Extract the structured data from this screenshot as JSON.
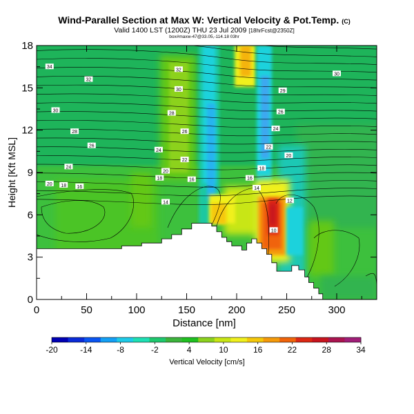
{
  "chart_data": {
    "type": "heatmap",
    "title": "Wind-Parallel Section at Max W: Vertical Velocity & Pot.Temp.",
    "title_mark": "(C)",
    "subtitle": "Valid 1400 LST (1200Z) THU 23 Jul 2009",
    "subtitle_note": "[18hrFcst@2350Z]",
    "subtitle2": "box#maxw-47@33.05,-114.18 03hr",
    "xlabel": "Distance [nm]",
    "ylabel": "Height [Kft MSL]",
    "xlim": [
      0,
      340
    ],
    "ylim": [
      0,
      18
    ],
    "xticks": [
      0,
      50,
      100,
      150,
      200,
      250,
      300
    ],
    "yticks": [
      0,
      3,
      6,
      9,
      12,
      15,
      18
    ],
    "colorbar": {
      "label": "Vertical Velocity [cm/s]",
      "ticks": [
        -20,
        -14,
        -8,
        -2,
        4,
        10,
        16,
        22,
        28,
        34
      ],
      "range": [
        -20,
        34
      ],
      "colors": [
        "#0000b4",
        "#0a2bd8",
        "#0a55f2",
        "#14a0f5",
        "#1ecbe8",
        "#1ee0b4",
        "#1ec86e",
        "#3cb43c",
        "#20c020",
        "#8cd21e",
        "#c8e614",
        "#f0f01e",
        "#f5c80a",
        "#f59a0a",
        "#f0640a",
        "#dc2814",
        "#c8141e",
        "#aa1450",
        "#a01e78"
      ]
    },
    "terrain": [
      {
        "x": 0,
        "h": 3.6
      },
      {
        "x": 85,
        "h": 3.6
      },
      {
        "x": 85,
        "h": 3.8
      },
      {
        "x": 105,
        "h": 3.8
      },
      {
        "x": 105,
        "h": 4.0
      },
      {
        "x": 125,
        "h": 4.0
      },
      {
        "x": 125,
        "h": 4.3
      },
      {
        "x": 135,
        "h": 4.3
      },
      {
        "x": 135,
        "h": 4.6
      },
      {
        "x": 145,
        "h": 4.6
      },
      {
        "x": 145,
        "h": 5.0
      },
      {
        "x": 155,
        "h": 5.0
      },
      {
        "x": 155,
        "h": 5.4
      },
      {
        "x": 175,
        "h": 5.4
      },
      {
        "x": 175,
        "h": 5.2
      },
      {
        "x": 180,
        "h": 5.2
      },
      {
        "x": 180,
        "h": 4.8
      },
      {
        "x": 185,
        "h": 4.8
      },
      {
        "x": 185,
        "h": 4.4
      },
      {
        "x": 190,
        "h": 4.4
      },
      {
        "x": 190,
        "h": 4.1
      },
      {
        "x": 195,
        "h": 4.1
      },
      {
        "x": 195,
        "h": 3.8
      },
      {
        "x": 205,
        "h": 3.8
      },
      {
        "x": 205,
        "h": 3.5
      },
      {
        "x": 210,
        "h": 3.5
      },
      {
        "x": 210,
        "h": 4.0
      },
      {
        "x": 215,
        "h": 4.0
      },
      {
        "x": 215,
        "h": 4.3
      },
      {
        "x": 220,
        "h": 4.3
      },
      {
        "x": 220,
        "h": 4.0
      },
      {
        "x": 225,
        "h": 4.0
      },
      {
        "x": 225,
        "h": 3.6
      },
      {
        "x": 230,
        "h": 3.6
      },
      {
        "x": 230,
        "h": 3.2
      },
      {
        "x": 235,
        "h": 3.2
      },
      {
        "x": 235,
        "h": 2.6
      },
      {
        "x": 240,
        "h": 2.6
      },
      {
        "x": 240,
        "h": 2.0
      },
      {
        "x": 255,
        "h": 2.0
      },
      {
        "x": 255,
        "h": 2.4
      },
      {
        "x": 262,
        "h": 2.4
      },
      {
        "x": 262,
        "h": 2.1
      },
      {
        "x": 268,
        "h": 2.1
      },
      {
        "x": 268,
        "h": 1.6
      },
      {
        "x": 272,
        "h": 1.6
      },
      {
        "x": 272,
        "h": 1.2
      },
      {
        "x": 277,
        "h": 1.2
      },
      {
        "x": 277,
        "h": 0.8
      },
      {
        "x": 282,
        "h": 0.8
      },
      {
        "x": 282,
        "h": 0.4
      },
      {
        "x": 286,
        "h": 0.4
      },
      {
        "x": 286,
        "h": 0
      },
      {
        "x": 340,
        "h": 0
      }
    ],
    "theta_labels": [
      {
        "x": 13,
        "y": 16.5,
        "t": "34"
      },
      {
        "x": 52,
        "y": 15.6,
        "t": "32"
      },
      {
        "x": 19,
        "y": 13.4,
        "t": "30"
      },
      {
        "x": 38,
        "y": 11.9,
        "t": "28"
      },
      {
        "x": 55,
        "y": 10.9,
        "t": "26"
      },
      {
        "x": 32,
        "y": 9.4,
        "t": "24"
      },
      {
        "x": 13,
        "y": 8.2,
        "t": "20"
      },
      {
        "x": 27,
        "y": 8.1,
        "t": "18"
      },
      {
        "x": 43,
        "y": 8.0,
        "t": "16"
      },
      {
        "x": 142,
        "y": 16.3,
        "t": "32"
      },
      {
        "x": 142,
        "y": 14.9,
        "t": "30"
      },
      {
        "x": 135,
        "y": 13.2,
        "t": "28"
      },
      {
        "x": 148,
        "y": 11.9,
        "t": "26"
      },
      {
        "x": 122,
        "y": 10.6,
        "t": "24"
      },
      {
        "x": 148,
        "y": 9.9,
        "t": "22"
      },
      {
        "x": 129,
        "y": 9.1,
        "t": "20"
      },
      {
        "x": 123,
        "y": 8.6,
        "t": "18"
      },
      {
        "x": 155,
        "y": 8.5,
        "t": "16"
      },
      {
        "x": 129,
        "y": 6.9,
        "t": "14"
      },
      {
        "x": 300,
        "y": 16.0,
        "t": "30"
      },
      {
        "x": 246,
        "y": 14.8,
        "t": "29"
      },
      {
        "x": 244,
        "y": 13.3,
        "t": "26"
      },
      {
        "x": 239,
        "y": 12.1,
        "t": "24"
      },
      {
        "x": 232,
        "y": 10.8,
        "t": "22"
      },
      {
        "x": 252,
        "y": 10.2,
        "t": "20"
      },
      {
        "x": 225,
        "y": 9.3,
        "t": "18"
      },
      {
        "x": 213,
        "y": 8.6,
        "t": "16"
      },
      {
        "x": 220,
        "y": 7.9,
        "t": "14"
      },
      {
        "x": 253,
        "y": 7.0,
        "t": "12"
      },
      {
        "x": 237,
        "y": 4.9,
        "t": "10"
      }
    ]
  }
}
